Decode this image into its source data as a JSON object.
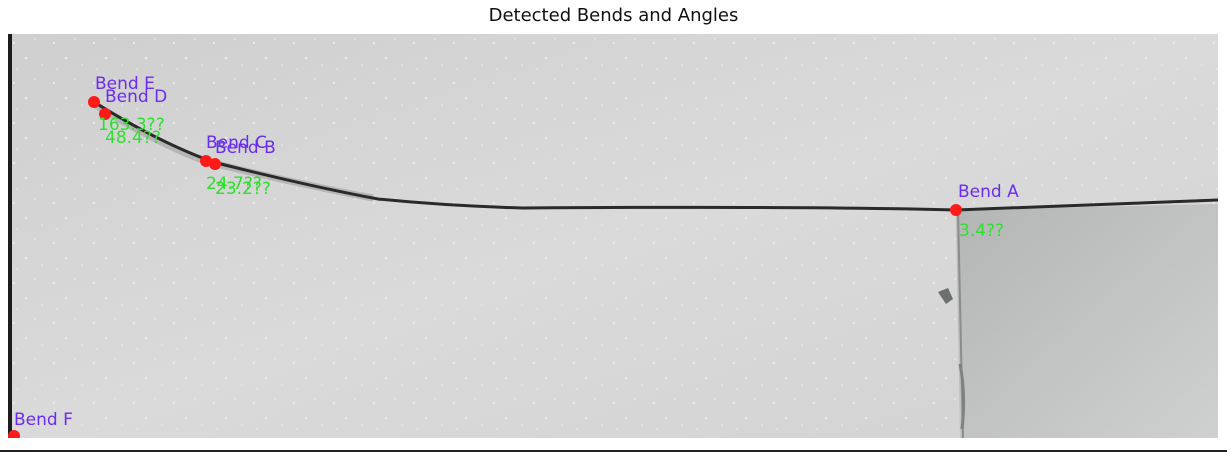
{
  "figure": {
    "title": "Detected Bends and Angles"
  },
  "colors": {
    "background_wall": "#d8d8d8",
    "bend_marker": "#ff1a1a",
    "bend_label": "#6a2cf0",
    "angle_label": "#2fe02f",
    "wire": "#2a2a2a",
    "block_face": "#b9bcbb"
  },
  "bends": [
    {
      "label": "Bend A",
      "angle": "3.4??"
    },
    {
      "label": "Bend B",
      "angle": "23.2??"
    },
    {
      "label": "Bend C",
      "angle": "24.7??"
    },
    {
      "label": "Bend D",
      "angle": "48.4??"
    },
    {
      "label": "Bend E",
      "angle": "163.3??"
    },
    {
      "label": "Bend F",
      "angle": ""
    }
  ]
}
